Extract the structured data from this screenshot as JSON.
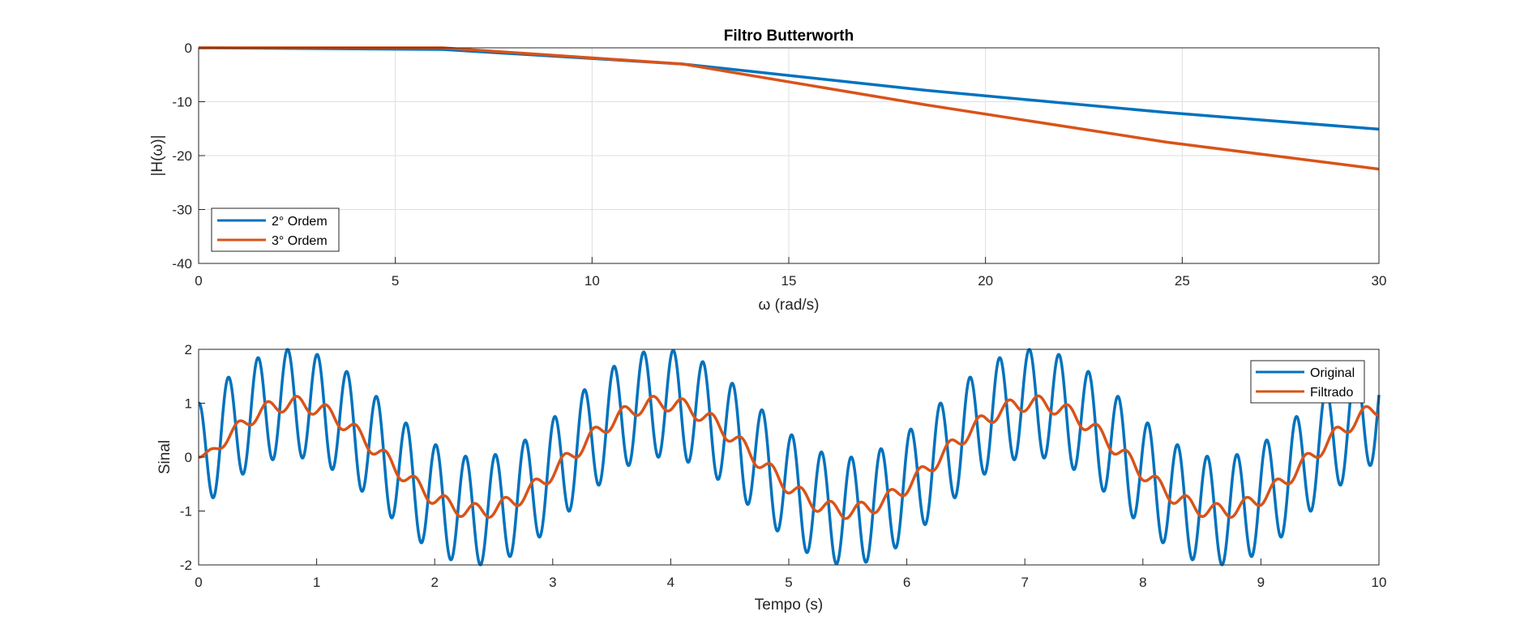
{
  "chart_data": [
    {
      "type": "line",
      "title": "Filtro Butterworth",
      "xlabel": "ω (rad/s)",
      "ylabel": "|H(ω)|",
      "xlim": [
        0,
        30
      ],
      "ylim": [
        -40,
        0
      ],
      "xticks": [
        0,
        5,
        10,
        15,
        20,
        25,
        30
      ],
      "yticks": [
        0,
        -10,
        -20,
        -30,
        -40
      ],
      "grid": true,
      "legend_position": "bottom-left",
      "series": [
        {
          "name": "2° Ordem",
          "color": "#0072BD",
          "x": [
            0,
            6.2,
            12.3,
            18.5,
            24.6,
            30
          ],
          "y": [
            0,
            -0.3,
            -3.0,
            -7.9,
            -12.0,
            -15.1
          ]
        },
        {
          "name": "3° Ordem",
          "color": "#D95319",
          "x": [
            0,
            6.2,
            12.3,
            18.5,
            24.6,
            30
          ],
          "y": [
            0,
            0,
            -3.0,
            -10.6,
            -17.5,
            -22.5
          ]
        }
      ]
    },
    {
      "type": "line",
      "title": "",
      "xlabel": "Tempo (s)",
      "ylabel": "Sinal",
      "xlim": [
        0,
        10
      ],
      "ylim": [
        -2,
        2
      ],
      "xticks": [
        0,
        1,
        2,
        3,
        4,
        5,
        6,
        7,
        8,
        9,
        10
      ],
      "yticks": [
        2,
        1,
        0,
        -1,
        -2
      ],
      "grid": false,
      "legend_position": "top-right",
      "series": [
        {
          "name": "Original",
          "color": "#0072BD",
          "expression": "sin(2t) + cos(25t)",
          "t_range": [
            0,
            10
          ]
        },
        {
          "name": "Filtrado",
          "color": "#D95319",
          "expression": "filtered: ≈ sin(2t) + small residual ripple, starts at 0",
          "t_range": [
            0,
            10
          ]
        }
      ]
    }
  ]
}
